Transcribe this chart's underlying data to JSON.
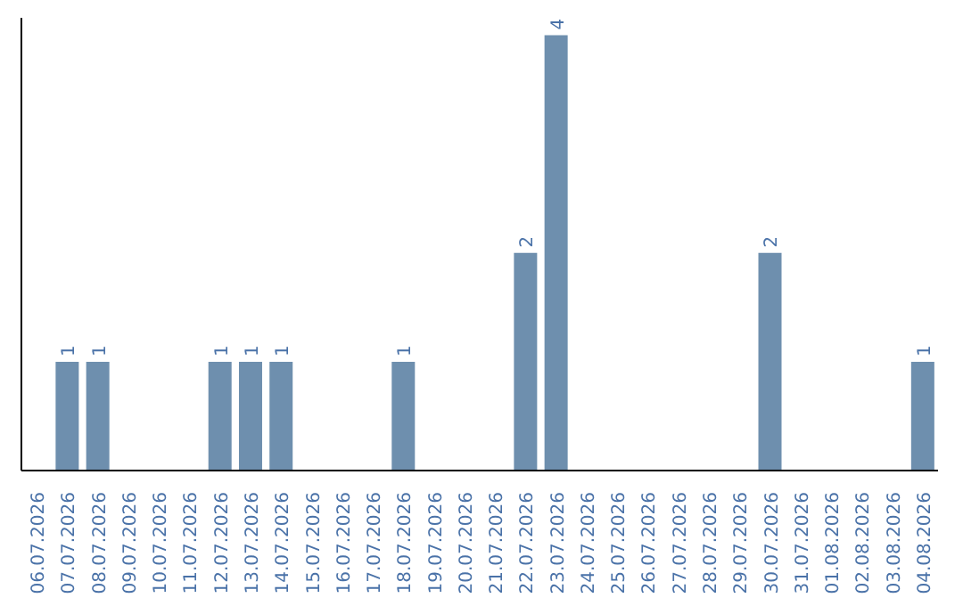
{
  "chart_data": {
    "type": "bar",
    "categories": [
      "06.07.2026",
      "07.07.2026",
      "08.07.2026",
      "09.07.2026",
      "10.07.2026",
      "11.07.2026",
      "12.07.2026",
      "13.07.2026",
      "14.07.2026",
      "15.07.2026",
      "16.07.2026",
      "17.07.2026",
      "18.07.2026",
      "19.07.2026",
      "20.07.2026",
      "21.07.2026",
      "22.07.2026",
      "23.07.2026",
      "24.07.2026",
      "25.07.2026",
      "26.07.2026",
      "27.07.2026",
      "28.07.2026",
      "29.07.2026",
      "30.07.2026",
      "31.07.2026",
      "01.08.2026",
      "02.08.2026",
      "03.08.2026",
      "04.08.2026"
    ],
    "values": [
      0,
      1,
      1,
      0,
      0,
      0,
      1,
      1,
      1,
      0,
      0,
      0,
      1,
      0,
      0,
      0,
      2,
      4,
      0,
      0,
      0,
      0,
      0,
      0,
      2,
      0,
      0,
      0,
      0,
      1
    ],
    "value_labels": [
      null,
      "1",
      "1",
      null,
      null,
      null,
      "1",
      "1",
      "1",
      null,
      null,
      null,
      "1",
      null,
      null,
      null,
      "2",
      "4",
      null,
      null,
      null,
      null,
      null,
      null,
      "2",
      null,
      null,
      null,
      null,
      "1"
    ],
    "color": "#6e8fae",
    "grid": false,
    "legend": false
  }
}
